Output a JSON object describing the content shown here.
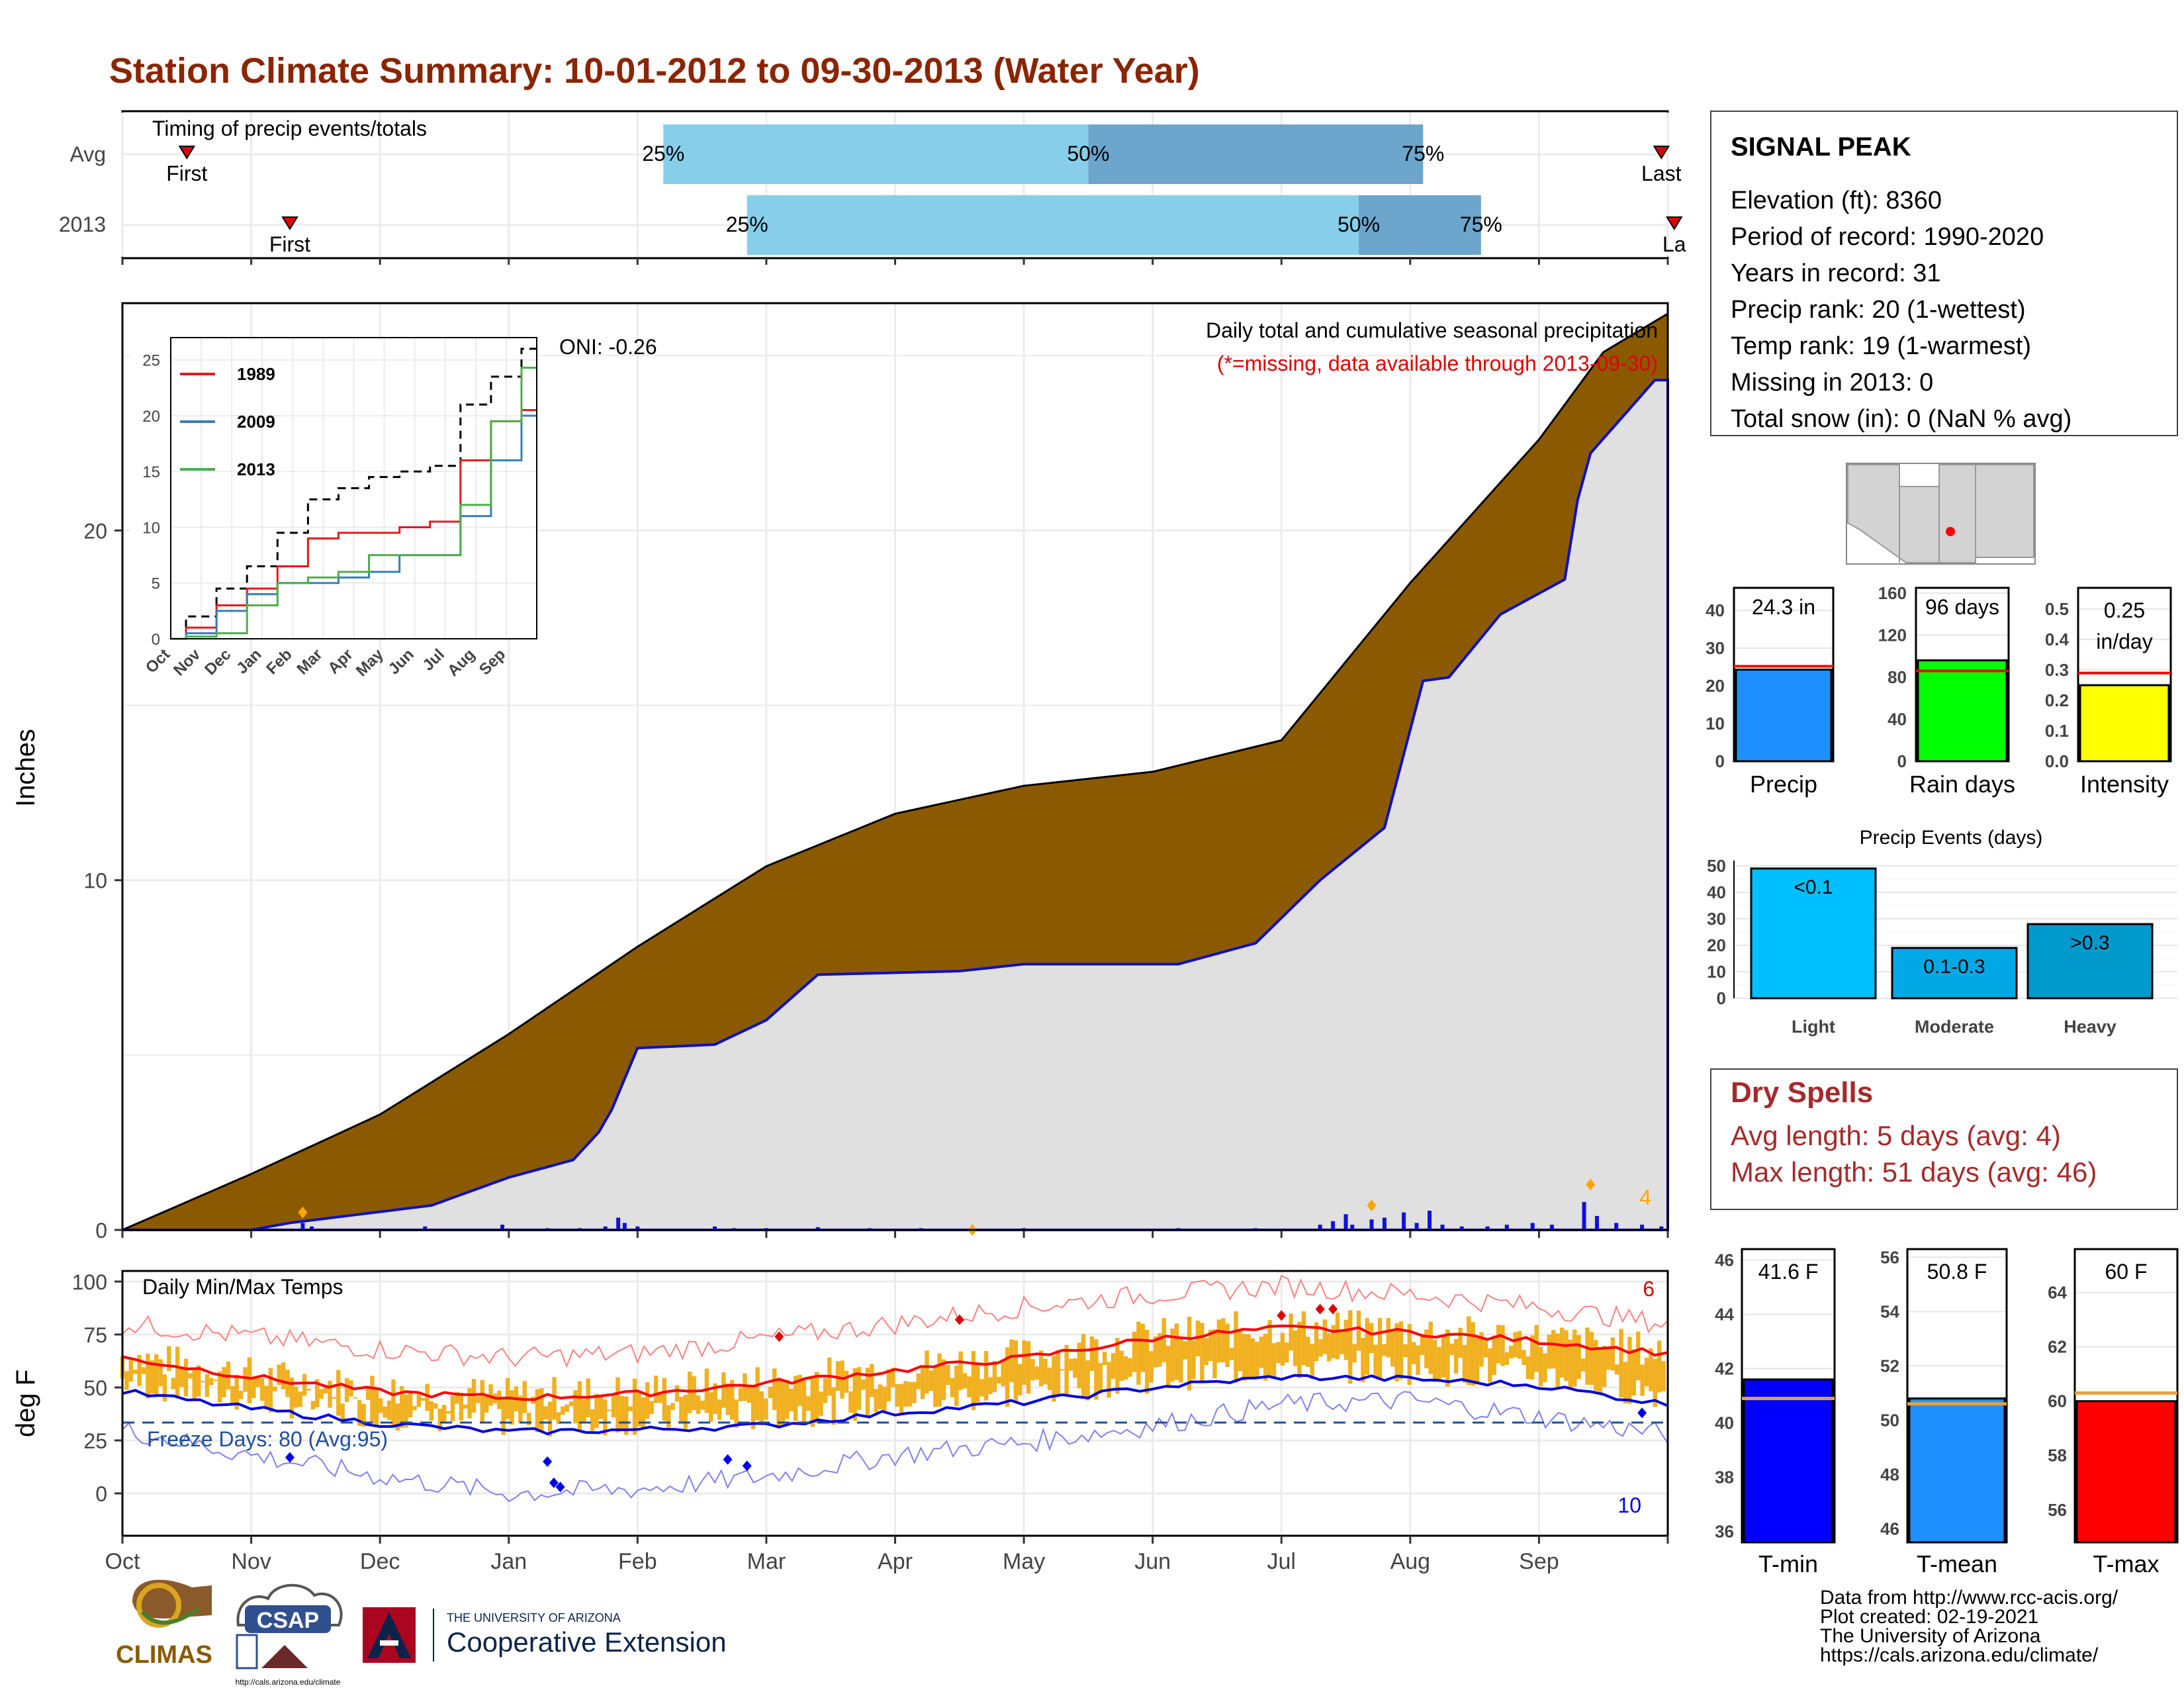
{
  "title": "Station Climate Summary: 10-01-2012 to 09-30-2013 (Water Year)",
  "colors": {
    "title": "#8B2500",
    "cum_brown": "#8B5A00",
    "cum_grey": "#E0E0E0",
    "current_line": "#1010C0",
    "daily_bar": "#1010E0",
    "temp_band": "#F0B020",
    "tmax_avg": "#FF0000",
    "tmin_avg": "#0000DD",
    "dry_spell_text": "#A52A2A",
    "timing_light": "#87CEEB",
    "timing_dark": "#6CA6CD"
  },
  "timing": {
    "label": "Timing of precip events/totals",
    "rows": [
      {
        "name": "Avg",
        "p25_label": "25%",
        "p50_label": "50%",
        "p75_label": "75%",
        "first_label": "First",
        "last_label": "Last",
        "p25": 4.2,
        "p50": 7.5,
        "p75": 10.1,
        "first": 0.5,
        "last": 11.95
      },
      {
        "name": "2013",
        "p25_label": "25%",
        "p50_label": "50%",
        "p75_label": "75%",
        "first_label": "First",
        "last_label": "La",
        "p25": 4.85,
        "p50": 9.6,
        "p75": 10.55,
        "first": 1.3,
        "last": 12.05
      }
    ]
  },
  "station": {
    "name": "SIGNAL PEAK",
    "lines": [
      "Elevation (ft): 8360",
      "Period of record: 1990-2020",
      "Years in record: 31",
      "Precip rank: 20 (1-wettest)",
      "Temp rank: 19 (1-warmest)",
      "Missing in 2013: 0",
      "Total snow (in): 0 (NaN % avg)"
    ]
  },
  "main": {
    "ylabel": "Inches",
    "yticks": [
      "0",
      "10",
      "20"
    ],
    "subtitle": "Daily total and cumulative seasonal precipitation",
    "missing_note": "(*=missing, data available through 2013-09-30)",
    "oni": "ONI: -0.26",
    "extreme_count": "4"
  },
  "inset": {
    "yticks": [
      "0",
      "5",
      "10",
      "15",
      "20",
      "25"
    ],
    "xticks": [
      "Oct",
      "Nov",
      "Dec",
      "Jan",
      "Feb",
      "Mar",
      "Apr",
      "May",
      "Jun",
      "Jul",
      "Aug",
      "Sep"
    ],
    "legend": [
      {
        "name": "1989",
        "color": "#E41A1C"
      },
      {
        "name": "2009",
        "color": "#377EB8"
      },
      {
        "name": "2013",
        "color": "#4DAF4A"
      }
    ]
  },
  "temps": {
    "label": "Daily Min/Max Temps",
    "ylabel": "deg F",
    "yticks": [
      "0",
      "25",
      "50",
      "75",
      "100"
    ],
    "freeze_label": "Freeze Days: 80 (Avg:95)",
    "hot_count": "6",
    "cold_count": "10",
    "xticks": [
      "Oct",
      "Nov",
      "Dec",
      "Jan",
      "Feb",
      "Mar",
      "Apr",
      "May",
      "Jun",
      "Jul",
      "Aug",
      "Sep"
    ]
  },
  "summary_bars": [
    {
      "label": "Precip",
      "value_label": "24.3 in",
      "value": 24.3,
      "avg": 25.2,
      "ymax": 46,
      "ticks": [
        "0",
        "10",
        "20",
        "30",
        "40"
      ],
      "tickvals": [
        0,
        10,
        20,
        30,
        40
      ],
      "fill": "#1E90FF"
    },
    {
      "label": "Rain days",
      "value_label": "96 days",
      "value": 96,
      "avg": 86,
      "ymax": 165,
      "ticks": [
        "0",
        "40",
        "80",
        "120",
        "160"
      ],
      "tickvals": [
        0,
        40,
        80,
        120,
        160
      ],
      "fill": "#00FF00"
    },
    {
      "label": "Intensity",
      "value_label": "0.25 in/day",
      "value": 0.25,
      "avg": 0.29,
      "ymax": 0.57,
      "ticks": [
        "0.0",
        "0.1",
        "0.2",
        "0.3",
        "0.4",
        "0.5"
      ],
      "tickvals": [
        0,
        0.1,
        0.2,
        0.3,
        0.4,
        0.5
      ],
      "fill": "#FFFF00"
    }
  ],
  "events": {
    "title": "Precip Events (days)",
    "ticks": [
      "0",
      "10",
      "20",
      "30",
      "40",
      "50"
    ],
    "bars": [
      {
        "label": "Light",
        "range": "<0.1",
        "value": 49,
        "fill": "#00BFFF"
      },
      {
        "label": "Moderate",
        "range": "0.1-0.3",
        "value": 19,
        "fill": "#00A9E6"
      },
      {
        "label": "Heavy",
        "range": ">0.3",
        "value": 28,
        "fill": "#0099CC"
      }
    ]
  },
  "dry_spells": {
    "title": "Dry Spells",
    "avg": "Avg length: 5 days (avg: 4)",
    "max": "Max length: 51 days (avg: 46)"
  },
  "temp_bars": [
    {
      "label": "T-min",
      "value_label": "41.6 F",
      "value": 41.6,
      "avg": 40.9,
      "ymin": 35.6,
      "ymax": 46.4,
      "ticks": [
        "36",
        "38",
        "40",
        "42",
        "44",
        "46"
      ],
      "tickvals": [
        36,
        38,
        40,
        42,
        44,
        46
      ],
      "fill": "#0000FF"
    },
    {
      "label": "T-mean",
      "value_label": "50.8 F",
      "value": 50.8,
      "avg": 50.6,
      "ymin": 45.5,
      "ymax": 56.3,
      "ticks": [
        "46",
        "48",
        "50",
        "52",
        "54",
        "56"
      ],
      "tickvals": [
        46,
        48,
        50,
        52,
        54,
        56
      ],
      "fill": "#1E90FF"
    },
    {
      "label": "T-max",
      "value_label": "60 F",
      "value": 60,
      "avg": 60.3,
      "ymin": 54.8,
      "ymax": 65.6,
      "ticks": [
        "56",
        "58",
        "60",
        "62",
        "64"
      ],
      "tickvals": [
        56,
        58,
        60,
        62,
        64
      ],
      "fill": "#FF0000"
    }
  ],
  "footer": {
    "credits": [
      "Data from http://www.rcc-acis.org/",
      "Plot created: 02-19-2021",
      "The University of Arizona",
      "https://cals.arizona.edu/climate/"
    ],
    "climas": "CLIMAS",
    "csap": "CSAP",
    "csap_url": "http://cals.arizona.edu/climate",
    "ua_small": "THE UNIVERSITY OF ARIZONA",
    "ua_big": "Cooperative Extension"
  },
  "chart_data": [
    {
      "type": "area",
      "title": "Daily total and cumulative seasonal precipitation",
      "ylabel": "Inches",
      "ylim": [
        0,
        26
      ],
      "x_months": [
        "Oct",
        "Nov",
        "Dec",
        "Jan",
        "Feb",
        "Mar",
        "Apr",
        "May",
        "Jun",
        "Jul",
        "Aug",
        "Sep"
      ],
      "series": [
        {
          "name": "average cumulative",
          "x": [
            0,
            1,
            2,
            3,
            4,
            5,
            6,
            7,
            8,
            9,
            10,
            11,
            11.5,
            12
          ],
          "values": [
            0,
            1.6,
            3.3,
            5.6,
            8.1,
            10.4,
            11.9,
            12.7,
            13.1,
            14.0,
            18.5,
            22.6,
            25.1,
            26.2
          ]
        },
        {
          "name": "2013 cumulative",
          "x": [
            0,
            1,
            1.3,
            2.4,
            3.0,
            3.5,
            3.75,
            4.0,
            4.6,
            5.0,
            5.4,
            6.5,
            7.0,
            8.2,
            8.8,
            9.3,
            9.8,
            10.1,
            10.3,
            10.7,
            11.2,
            11.35,
            11.9,
            12
          ],
          "values": [
            0,
            0,
            0.2,
            0.7,
            1.5,
            2.0,
            3.0,
            5.2,
            5.3,
            6.0,
            7.3,
            7.4,
            7.6,
            7.6,
            8.2,
            10.0,
            11.5,
            15.7,
            15.8,
            17.6,
            18.6,
            22.0,
            24.3,
            24.3
          ]
        }
      ],
      "daily_precip_dates_note": "sparse daily bars, largest ~0.9 in"
    },
    {
      "type": "line",
      "title": "",
      "ylim": [
        0,
        26
      ],
      "x": [
        "Oct",
        "Nov",
        "Dec",
        "Jan",
        "Feb",
        "Mar",
        "Apr",
        "May",
        "Jun",
        "Jul",
        "Aug",
        "Sep",
        "End"
      ],
      "series": [
        {
          "name": "Average",
          "values": [
            0,
            2.0,
            4.5,
            6.5,
            9.5,
            12.5,
            13.5,
            14.5,
            15.0,
            15.5,
            21.0,
            23.5,
            26.0
          ]
        },
        {
          "name": "1989",
          "values": [
            0,
            1.0,
            3.0,
            4.5,
            6.5,
            9.0,
            9.5,
            9.5,
            10.0,
            10.5,
            16.0,
            19.5,
            20.5
          ]
        },
        {
          "name": "2009",
          "values": [
            0,
            0.5,
            2.5,
            4.0,
            5.0,
            5.0,
            5.5,
            6.0,
            7.5,
            7.5,
            11.0,
            16.0,
            20.0
          ]
        },
        {
          "name": "2013",
          "values": [
            0,
            0.2,
            0.5,
            3.0,
            5.0,
            5.5,
            6.0,
            7.5,
            7.5,
            7.5,
            12.0,
            19.5,
            24.3
          ]
        }
      ]
    },
    {
      "type": "line",
      "title": "Daily Min/Max Temps",
      "ylabel": "deg F",
      "ylim": [
        -20,
        100
      ],
      "x": [
        "Oct",
        "Nov",
        "Dec",
        "Jan",
        "Feb",
        "Mar",
        "Apr",
        "May",
        "Jun",
        "Jul",
        "Aug",
        "Sep",
        "End"
      ],
      "series": [
        {
          "name": "avg max",
          "values": [
            64,
            55,
            48,
            45,
            47,
            52,
            58,
            64,
            73,
            78,
            76,
            72,
            66
          ]
        },
        {
          "name": "avg min",
          "values": [
            48,
            40,
            33,
            29,
            30,
            32,
            38,
            43,
            50,
            55,
            54,
            51,
            42
          ]
        },
        {
          "name": "record max",
          "values": [
            80,
            74,
            68,
            64,
            66,
            73,
            80,
            88,
            94,
            98,
            94,
            88,
            80
          ]
        },
        {
          "name": "record min",
          "values": [
            30,
            18,
            8,
            0,
            2,
            8,
            18,
            24,
            32,
            42,
            44,
            36,
            28
          ]
        }
      ],
      "freeze_threshold": 32
    },
    {
      "type": "bar",
      "title": "Precip Events (days)",
      "categories": [
        "Light",
        "Moderate",
        "Heavy"
      ],
      "values": [
        49,
        19,
        28
      ]
    }
  ]
}
